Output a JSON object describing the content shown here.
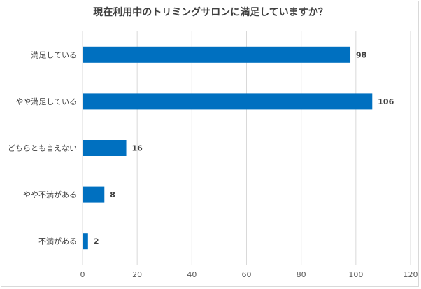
{
  "chart_data": {
    "type": "bar",
    "orientation": "horizontal",
    "title": "現在利用中のトリミングサロンに満足していますか？",
    "categories": [
      "満足している",
      "やや満足している",
      "どちらとも言えない",
      "やや不満がある",
      "不満がある"
    ],
    "values": [
      98,
      106,
      16,
      8,
      2
    ],
    "xlim": [
      0,
      120
    ],
    "ticks": [
      0,
      20,
      40,
      60,
      80,
      100,
      120
    ],
    "grid": true,
    "legend": false,
    "bar_color": "#0070c0",
    "xlabel": "",
    "ylabel": ""
  }
}
